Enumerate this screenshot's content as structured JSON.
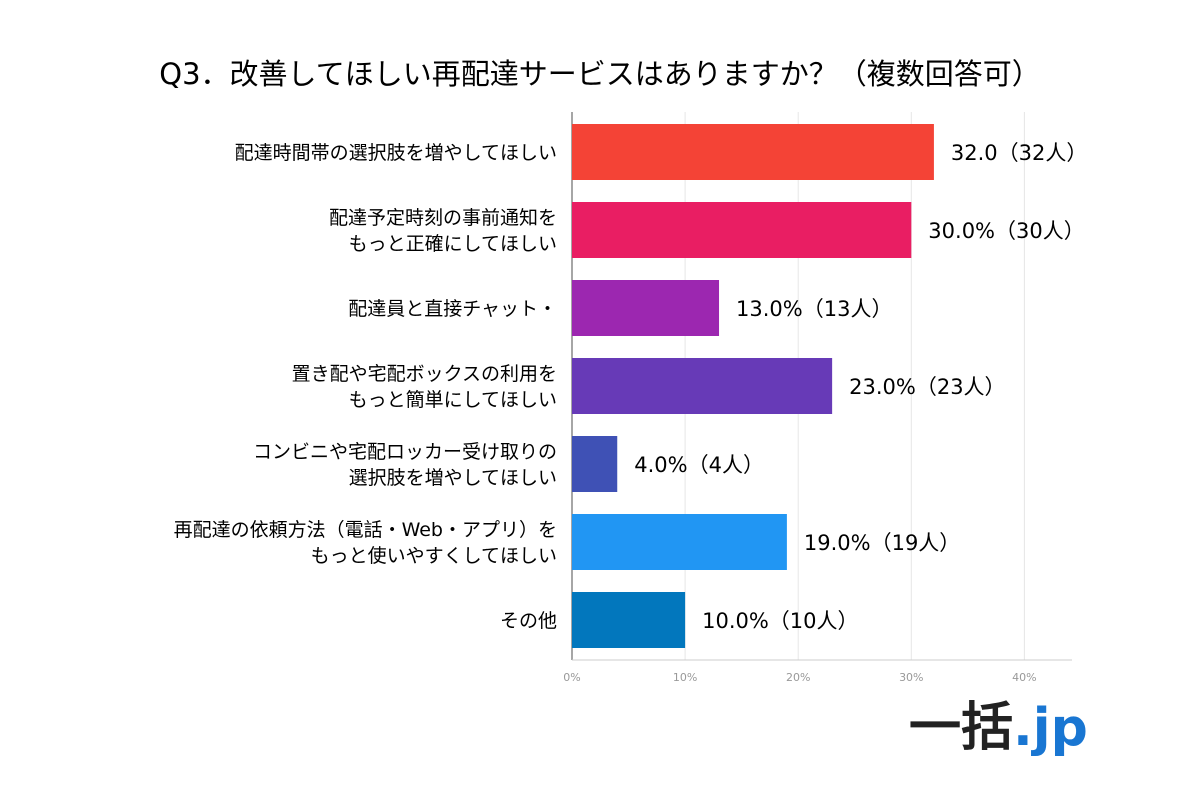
{
  "chart_data": {
    "type": "bar",
    "orientation": "horizontal",
    "title": "Q3．改善してほしい再配達サービスはありますか？（複数回答可）",
    "categories": [
      [
        "配達時間帯の選択肢を増やしてほしい"
      ],
      [
        "配達予定時刻の事前通知を",
        "もっと正確にしてほしい"
      ],
      [
        "配達員と直接チャット・"
      ],
      [
        "置き配や宅配ボックスの利用を",
        "もっと簡単にしてほしい"
      ],
      [
        "コンビニや宅配ロッカー受け取りの",
        "選択肢を増やしてほしい"
      ],
      [
        "再配達の依頼方法（電話・Web・アプリ）を",
        "もっと使いやすくしてほしい"
      ],
      [
        "その他"
      ]
    ],
    "values": [
      32,
      30,
      13,
      23,
      4,
      19,
      10
    ],
    "data_labels": [
      "32.0（32人）",
      "30.0%（30人）",
      "13.0%（13人）",
      "23.0%（23人）",
      "4.0%（4人）",
      "19.0%（19人）",
      "10.0%（10人）"
    ],
    "colors": [
      "#F44336",
      "#E91E63",
      "#9C27B0",
      "#673AB7",
      "#3F51B5",
      "#2196F3",
      "#0277BD"
    ],
    "xlim": [
      0,
      40
    ],
    "x_ticks": [
      "0%",
      "10%",
      "20%",
      "30%",
      "40%"
    ],
    "grid": true,
    "legend": "none"
  },
  "logo": {
    "kanji": "一括",
    "suffix": ".jp",
    "kanji_color": "#222222",
    "suffix_color": "#1976D2"
  }
}
